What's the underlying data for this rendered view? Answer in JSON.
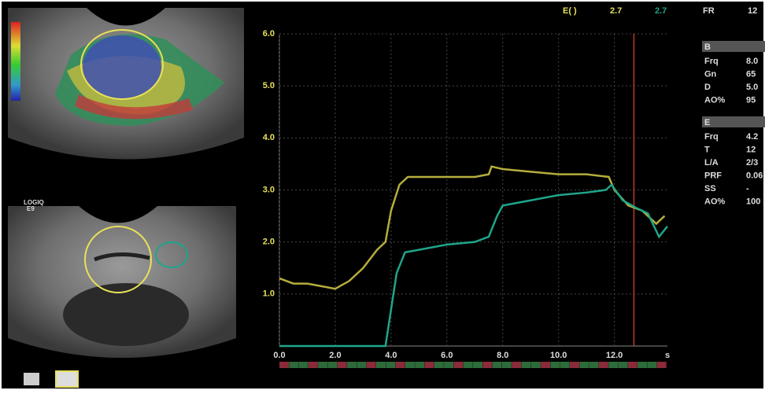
{
  "header": {
    "label": "E( )",
    "readouts": [
      "2.7",
      "2.7"
    ]
  },
  "image_labels": {
    "system": "LOGIQ",
    "model": "E9"
  },
  "params": {
    "fr": {
      "label": "FR",
      "value": "12"
    },
    "b": {
      "title": "B",
      "rows": [
        [
          "Frq",
          "8.0"
        ],
        [
          "Gn",
          "65"
        ],
        [
          "D",
          "5.0"
        ],
        [
          "AO%",
          "95"
        ]
      ]
    },
    "e": {
      "title": "E",
      "rows": [
        [
          "Frq",
          "4.2"
        ],
        [
          "T",
          "12"
        ],
        [
          "L/A",
          "2/3"
        ],
        [
          "PRF",
          "0.06"
        ],
        [
          "SS",
          "-"
        ],
        [
          "AO%",
          "100"
        ]
      ]
    }
  },
  "chart_data": {
    "type": "line",
    "x_unit": "s",
    "xlim": [
      0,
      13.9
    ],
    "ylim": [
      0,
      6
    ],
    "xticks": [
      {
        "value": 0,
        "label": "0.0"
      },
      {
        "value": 2,
        "label": "2.0"
      },
      {
        "value": 4,
        "label": "4.0"
      },
      {
        "value": 6,
        "label": "6.0"
      },
      {
        "value": 8,
        "label": "8.0"
      },
      {
        "value": 10,
        "label": "10.0"
      },
      {
        "value": 12,
        "label": "12.0"
      }
    ],
    "yticks": [
      {
        "value": 1,
        "label": "1.0"
      },
      {
        "value": 2,
        "label": "2.0"
      },
      {
        "value": 3,
        "label": "3.0"
      },
      {
        "value": 4,
        "label": "4.0"
      },
      {
        "value": 5,
        "label": "5.0"
      },
      {
        "value": 6,
        "label": "6.0"
      }
    ],
    "grid": true,
    "cursor_x": 12.7,
    "cursor_color": "#c0392b",
    "series": [
      {
        "color": "#b5ad3c",
        "x": [
          0,
          0.5,
          1,
          1.5,
          2,
          2.5,
          3,
          3.5,
          3.8,
          4,
          4.3,
          4.6,
          5,
          6,
          7,
          7.5,
          7.6,
          8,
          9,
          10,
          11,
          11.8,
          12,
          12.5,
          13,
          13.5,
          13.8
        ],
        "values": [
          1.3,
          1.2,
          1.2,
          1.15,
          1.1,
          1.25,
          1.5,
          1.85,
          2.0,
          2.6,
          3.1,
          3.25,
          3.25,
          3.25,
          3.25,
          3.3,
          3.45,
          3.4,
          3.35,
          3.3,
          3.3,
          3.25,
          3.0,
          2.7,
          2.6,
          2.35,
          2.5
        ]
      },
      {
        "color": "#1fa58a",
        "x": [
          0,
          3.8,
          4.2,
          4.5,
          5,
          6,
          7,
          7.5,
          7.8,
          8,
          9,
          10,
          11,
          11.7,
          11.9,
          12.3,
          12.8,
          13.2,
          13.6,
          13.9
        ],
        "values": [
          0,
          0,
          1.4,
          1.8,
          1.85,
          1.95,
          2.0,
          2.1,
          2.5,
          2.7,
          2.8,
          2.9,
          2.95,
          3.0,
          3.1,
          2.8,
          2.65,
          2.55,
          2.1,
          2.3
        ]
      }
    ]
  }
}
